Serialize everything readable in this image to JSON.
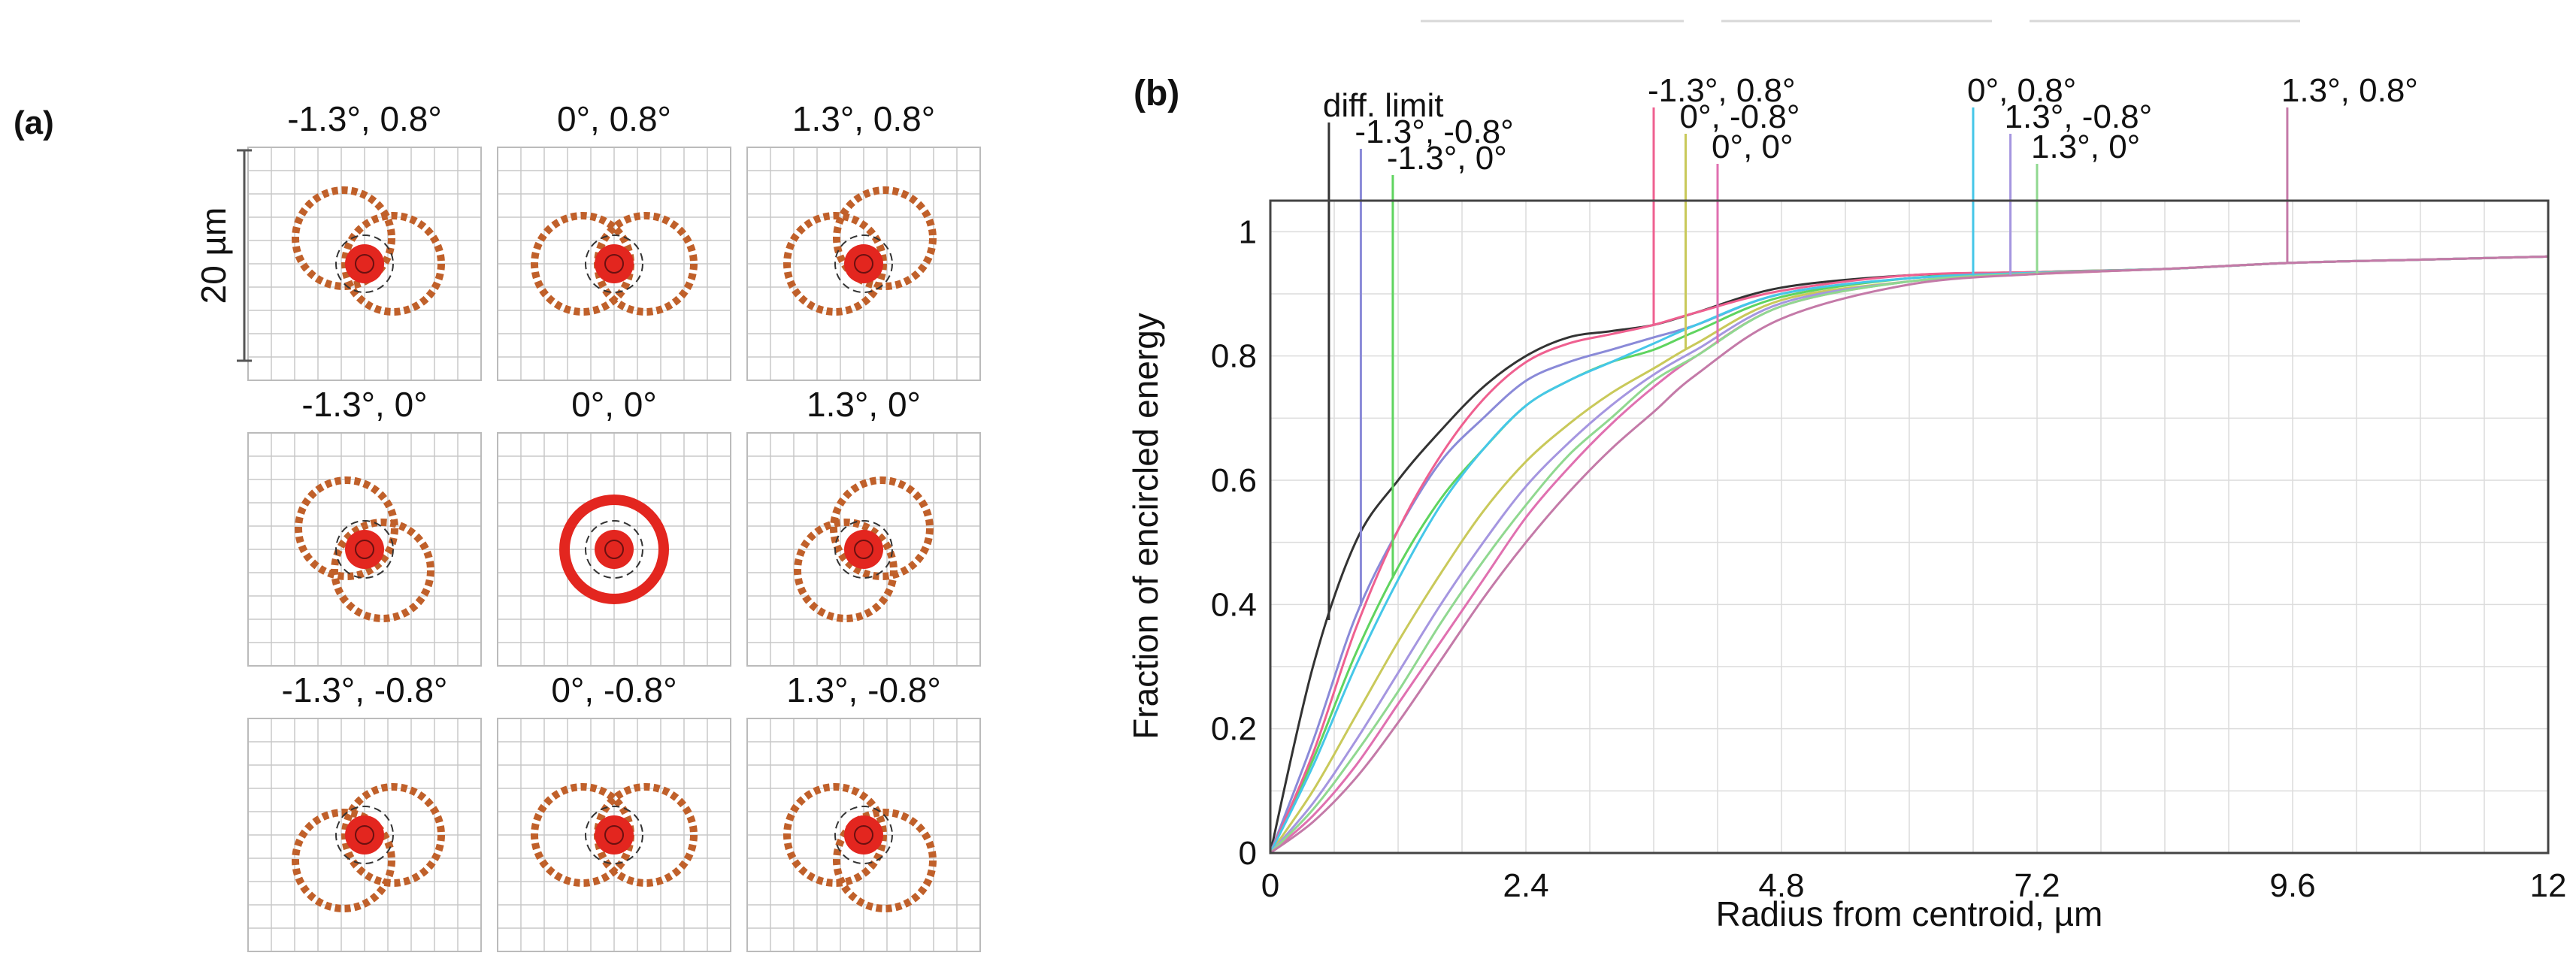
{
  "figure": {
    "panel_a_label": "(a)",
    "panel_b_label": "(b)"
  },
  "spot_diagrams": {
    "scale_label": "20 µm",
    "cells": [
      {
        "label": "-1.3°, 0.8°",
        "field_x": -1.3,
        "field_y": 0.8
      },
      {
        "label": "0°, 0.8°",
        "field_x": 0,
        "field_y": 0.8
      },
      {
        "label": "1.3°, 0.8°",
        "field_x": 1.3,
        "field_y": 0.8
      },
      {
        "label": "-1.3°, 0°",
        "field_x": -1.3,
        "field_y": 0
      },
      {
        "label": "0°, 0°",
        "field_x": 0,
        "field_y": 0
      },
      {
        "label": "1.3°, 0°",
        "field_x": 1.3,
        "field_y": 0
      },
      {
        "label": "-1.3°, -0.8°",
        "field_x": -1.3,
        "field_y": -0.8
      },
      {
        "label": "0°, -0.8°",
        "field_x": 0,
        "field_y": -0.8
      },
      {
        "label": "1.3°, -0.8°",
        "field_x": 1.3,
        "field_y": -0.8
      }
    ],
    "spot_color": "#e3261f",
    "ring_color": "#c0602a"
  },
  "chart_data": {
    "type": "line",
    "xlabel": "Radius from centroid, µm",
    "ylabel": "Fraction of encircled energy",
    "xlim": [
      0,
      12
    ],
    "ylim": [
      0,
      1.05
    ],
    "xticks": [
      0,
      2.4,
      4.8,
      7.2,
      9.6,
      12
    ],
    "xtick_labels": [
      "0",
      "2.4",
      "4.8",
      "7.2",
      "9.6",
      "12"
    ],
    "yticks": [
      0,
      0.2,
      0.4,
      0.6,
      0.8,
      1
    ],
    "ytick_labels": [
      "0",
      "0.2",
      "0.4",
      "0.6",
      "0.8",
      "1"
    ],
    "grid": true,
    "x": [
      0,
      0.4,
      0.8,
      1.2,
      1.6,
      2.0,
      2.4,
      2.8,
      3.2,
      3.6,
      4.0,
      4.8,
      6.0,
      7.2,
      8.4,
      9.6,
      10.8,
      12.0
    ],
    "series": [
      {
        "name": "diff. limit",
        "color": "#333333",
        "radius": 0.55,
        "values": [
          0,
          0.3,
          0.5,
          0.6,
          0.68,
          0.75,
          0.8,
          0.83,
          0.84,
          0.85,
          0.87,
          0.91,
          0.93,
          0.935,
          0.94,
          0.95,
          0.955,
          0.96
        ]
      },
      {
        "name": "-1.3°, -0.8°",
        "color": "#8a8ad8",
        "radius": 0.85,
        "values": [
          0,
          0.18,
          0.38,
          0.52,
          0.63,
          0.7,
          0.76,
          0.79,
          0.81,
          0.83,
          0.85,
          0.9,
          0.925,
          0.935,
          0.94,
          0.95,
          0.955,
          0.96
        ]
      },
      {
        "name": "-1.3°, 0°",
        "color": "#5fd45f",
        "radius": 1.15,
        "values": [
          0,
          0.15,
          0.32,
          0.46,
          0.57,
          0.65,
          0.72,
          0.76,
          0.79,
          0.81,
          0.84,
          0.895,
          0.925,
          0.935,
          0.94,
          0.95,
          0.955,
          0.96
        ]
      },
      {
        "name": "-1.3°, 0.8°",
        "color": "#ef6090",
        "radius": 3.6,
        "values": [
          0,
          0.16,
          0.36,
          0.52,
          0.64,
          0.73,
          0.79,
          0.82,
          0.835,
          0.85,
          0.87,
          0.905,
          0.93,
          0.935,
          0.94,
          0.95,
          0.955,
          0.96
        ]
      },
      {
        "name": "0°, -0.8°",
        "color": "#c9c95a",
        "radius": 3.9,
        "values": [
          0,
          0.1,
          0.22,
          0.34,
          0.45,
          0.55,
          0.63,
          0.69,
          0.74,
          0.78,
          0.82,
          0.89,
          0.92,
          0.932,
          0.94,
          0.95,
          0.955,
          0.96
        ]
      },
      {
        "name": "0°, 0°",
        "color": "#e070b0",
        "radius": 4.2,
        "values": [
          0,
          0.06,
          0.14,
          0.24,
          0.34,
          0.44,
          0.54,
          0.62,
          0.69,
          0.75,
          0.8,
          0.88,
          0.92,
          0.932,
          0.94,
          0.95,
          0.955,
          0.96
        ]
      },
      {
        "name": "0°, 0.8°",
        "color": "#45c7e8",
        "radius": 6.6,
        "values": [
          0,
          0.14,
          0.3,
          0.44,
          0.56,
          0.65,
          0.72,
          0.76,
          0.79,
          0.82,
          0.85,
          0.9,
          0.925,
          0.934,
          0.94,
          0.95,
          0.955,
          0.96
        ]
      },
      {
        "name": "1.3°, -0.8°",
        "color": "#a596e0",
        "radius": 6.95,
        "values": [
          0,
          0.08,
          0.18,
          0.29,
          0.4,
          0.5,
          0.59,
          0.66,
          0.72,
          0.77,
          0.81,
          0.885,
          0.92,
          0.933,
          0.94,
          0.95,
          0.955,
          0.96
        ]
      },
      {
        "name": "1.3°, 0°",
        "color": "#90d890",
        "radius": 7.2,
        "values": [
          0,
          0.07,
          0.16,
          0.26,
          0.37,
          0.47,
          0.56,
          0.64,
          0.7,
          0.76,
          0.8,
          0.88,
          0.92,
          0.933,
          0.94,
          0.95,
          0.955,
          0.96
        ]
      },
      {
        "name": "1.3°, 0.8°",
        "color": "#c47aa8",
        "radius": 9.55,
        "values": [
          0,
          0.05,
          0.12,
          0.21,
          0.31,
          0.41,
          0.5,
          0.58,
          0.65,
          0.71,
          0.77,
          0.86,
          0.915,
          0.932,
          0.94,
          0.95,
          0.955,
          0.96
        ]
      }
    ],
    "annotations": [
      {
        "text": "diff. limit",
        "series": 0
      },
      {
        "text": "-1.3°, -0.8°",
        "series": 1
      },
      {
        "text": "-1.3°, 0°",
        "series": 2
      },
      {
        "text": "-1.3°, 0.8°",
        "series": 3
      },
      {
        "text": "0°, -0.8°",
        "series": 4
      },
      {
        "text": "0°, 0°",
        "series": 5
      },
      {
        "text": "0°, 0.8°",
        "series": 6
      },
      {
        "text": "1.3°, -0.8°",
        "series": 7
      },
      {
        "text": "1.3°, 0°",
        "series": 8
      },
      {
        "text": "1.3°, 0.8°",
        "series": 9
      }
    ]
  }
}
